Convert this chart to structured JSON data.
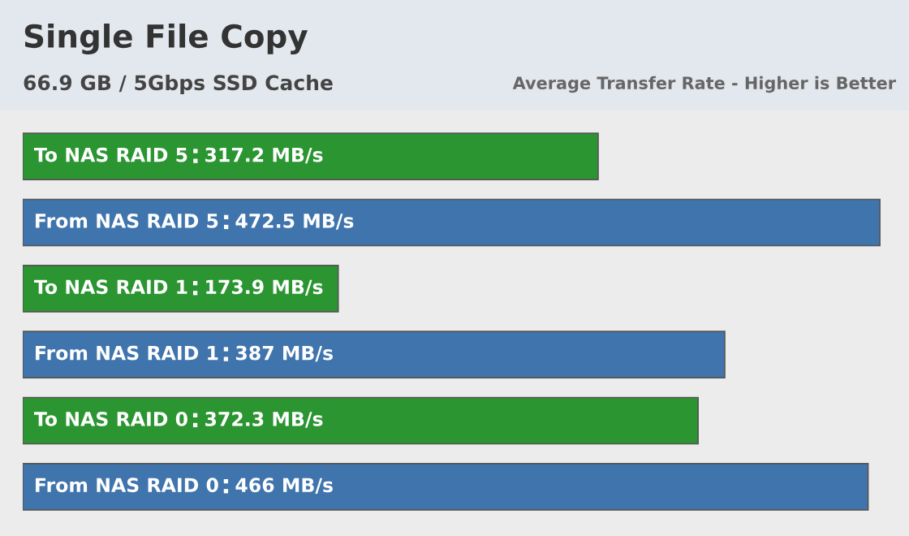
{
  "chart_data": {
    "type": "bar",
    "orientation": "horizontal",
    "title": "Single File Copy",
    "subtitle": "66.9 GB / 5Gbps SSD Cache",
    "annotations": [
      "Average Transfer Rate - Higher is Better"
    ],
    "categories": [
      "To NAS RAID 5",
      "From NAS RAID 5",
      "To NAS RAID 1",
      "From NAS RAID 1",
      "To NAS RAID 0",
      "From NAS RAID 0"
    ],
    "values": [
      317.2,
      472.5,
      173.9,
      387,
      372.3,
      466
    ],
    "value_labels": [
      "317.2 MB/s",
      "472.5 MB/s",
      "173.9 MB/s",
      "387 MB/s",
      "372.3 MB/s",
      "466 MB/s"
    ],
    "colors": [
      "#2a9531",
      "#3f74ad",
      "#2a9531",
      "#3f74ad",
      "#2a9531",
      "#3f74ad"
    ],
    "legend": false
  }
}
